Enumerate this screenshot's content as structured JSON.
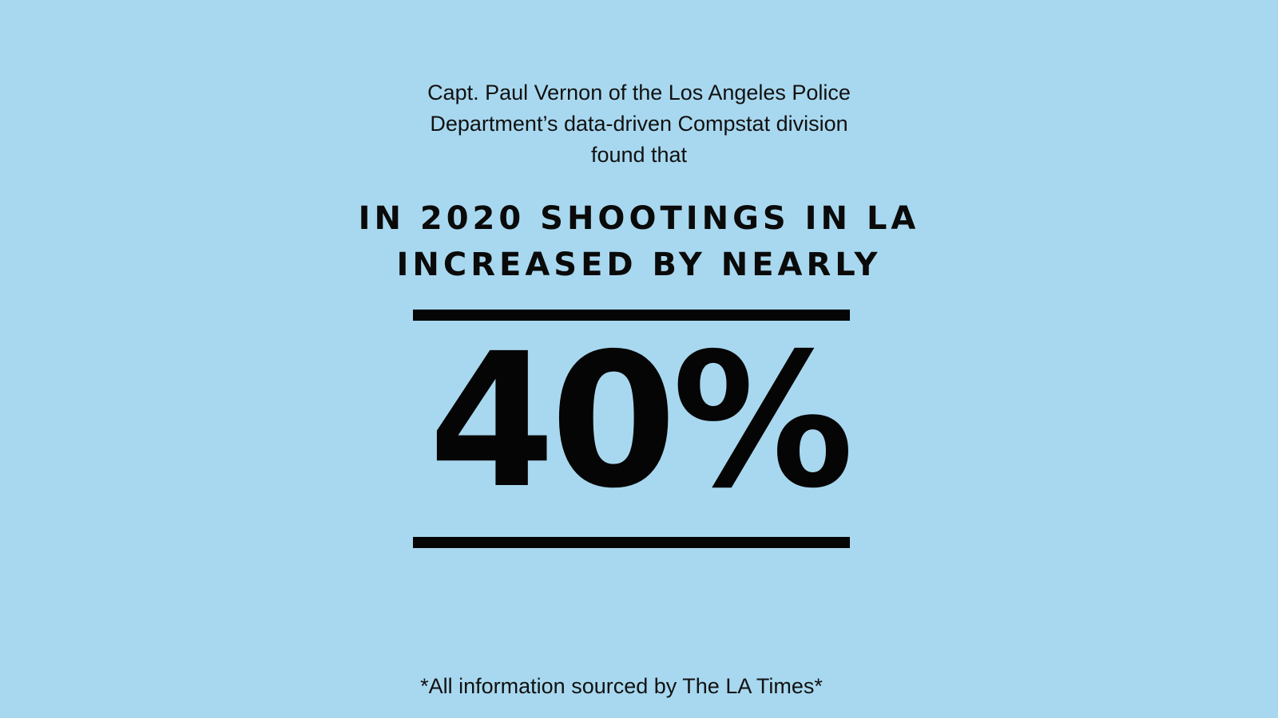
{
  "intro": {
    "lines": [
      "Capt. Paul Vernon of the Los Angeles Police",
      "Department’s data-driven Compstat division",
      "found that"
    ]
  },
  "headline": {
    "lines": [
      "IN 2020 SHOOTINGS IN LA",
      "INCREASED BY NEARLY"
    ]
  },
  "stat": {
    "value": "40%"
  },
  "footnote": "*All information sourced by The LA Times*",
  "colors": {
    "background": "#a8d8ef",
    "text": "#0a0a0a"
  }
}
